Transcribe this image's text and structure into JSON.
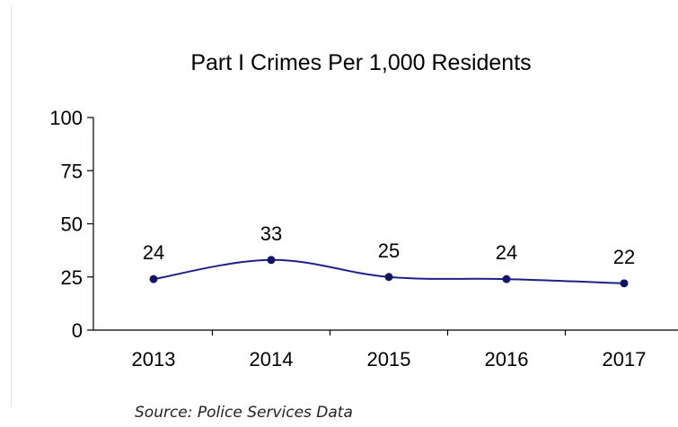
{
  "chart_data": {
    "type": "line",
    "title": "Part I Crimes Per 1,000 Residents",
    "xlabel": "",
    "ylabel": "",
    "categories": [
      "2013",
      "2014",
      "2015",
      "2016",
      "2017"
    ],
    "series": [
      {
        "values": [
          24,
          33,
          25,
          24,
          22
        ]
      }
    ],
    "data_labels": [
      "24",
      "33",
      "25",
      "24",
      "22"
    ],
    "ylim": [
      0,
      100
    ],
    "yticks": [
      "0",
      "25",
      "50",
      "75",
      "100"
    ],
    "grid": false,
    "legend": "none",
    "line_color": "#1f1f8a",
    "marker_color": "#141466"
  },
  "source_note": "Source: Police Services Data"
}
